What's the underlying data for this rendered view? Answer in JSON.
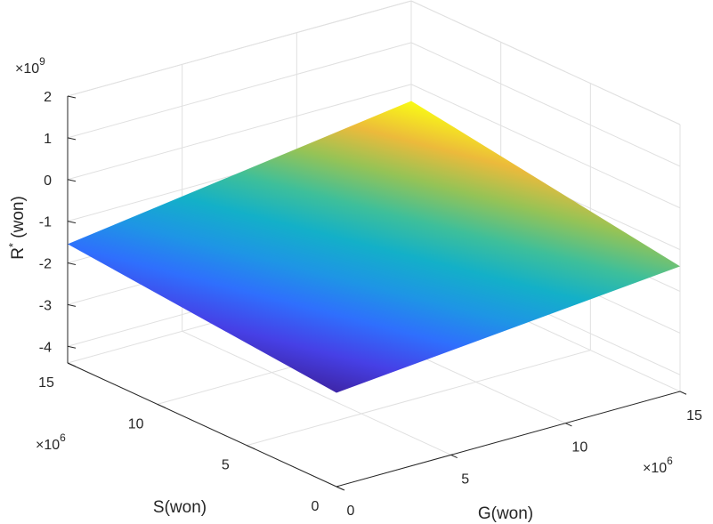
{
  "chart_data": {
    "type": "surface",
    "title": "",
    "colormap": "parula",
    "grid": true,
    "xlabel": "G(won)",
    "ylabel": "S(won)",
    "zlabel_base": "R",
    "zlabel_sup": "*",
    "zlabel_rest": " (won)",
    "xmultiplier": {
      "base": "×10",
      "exp": "6"
    },
    "ymultiplier": {
      "base": "×10",
      "exp": "6"
    },
    "zmultiplier": {
      "base": "×10",
      "exp": "9"
    },
    "xlim": [
      0,
      15
    ],
    "ylim": [
      0,
      15
    ],
    "zlim": [
      -4.4,
      2
    ],
    "xticks": [
      0,
      5,
      10,
      15
    ],
    "yticks": [
      0,
      5,
      10,
      15
    ],
    "zticks": [
      -4,
      -3,
      -2,
      -1,
      0,
      1,
      2
    ],
    "xticklabels": [
      "0",
      "5",
      "10",
      "15"
    ],
    "yticklabels": [
      "0",
      "5",
      "10",
      "15"
    ],
    "zticklabels": [
      "-4",
      "-3",
      "-2",
      "-1",
      "0",
      "1",
      "2"
    ],
    "surface": {
      "x_range": [
        0,
        15
      ],
      "y_range": [
        0,
        15
      ],
      "corners": [
        {
          "x": 0,
          "y": 0,
          "z": -2.15
        },
        {
          "x": 15,
          "y": 0,
          "z": -1.4
        },
        {
          "x": 0,
          "y": 15,
          "z": -1.55
        },
        {
          "x": 15,
          "y": 15,
          "z": -0.4
        }
      ]
    }
  }
}
